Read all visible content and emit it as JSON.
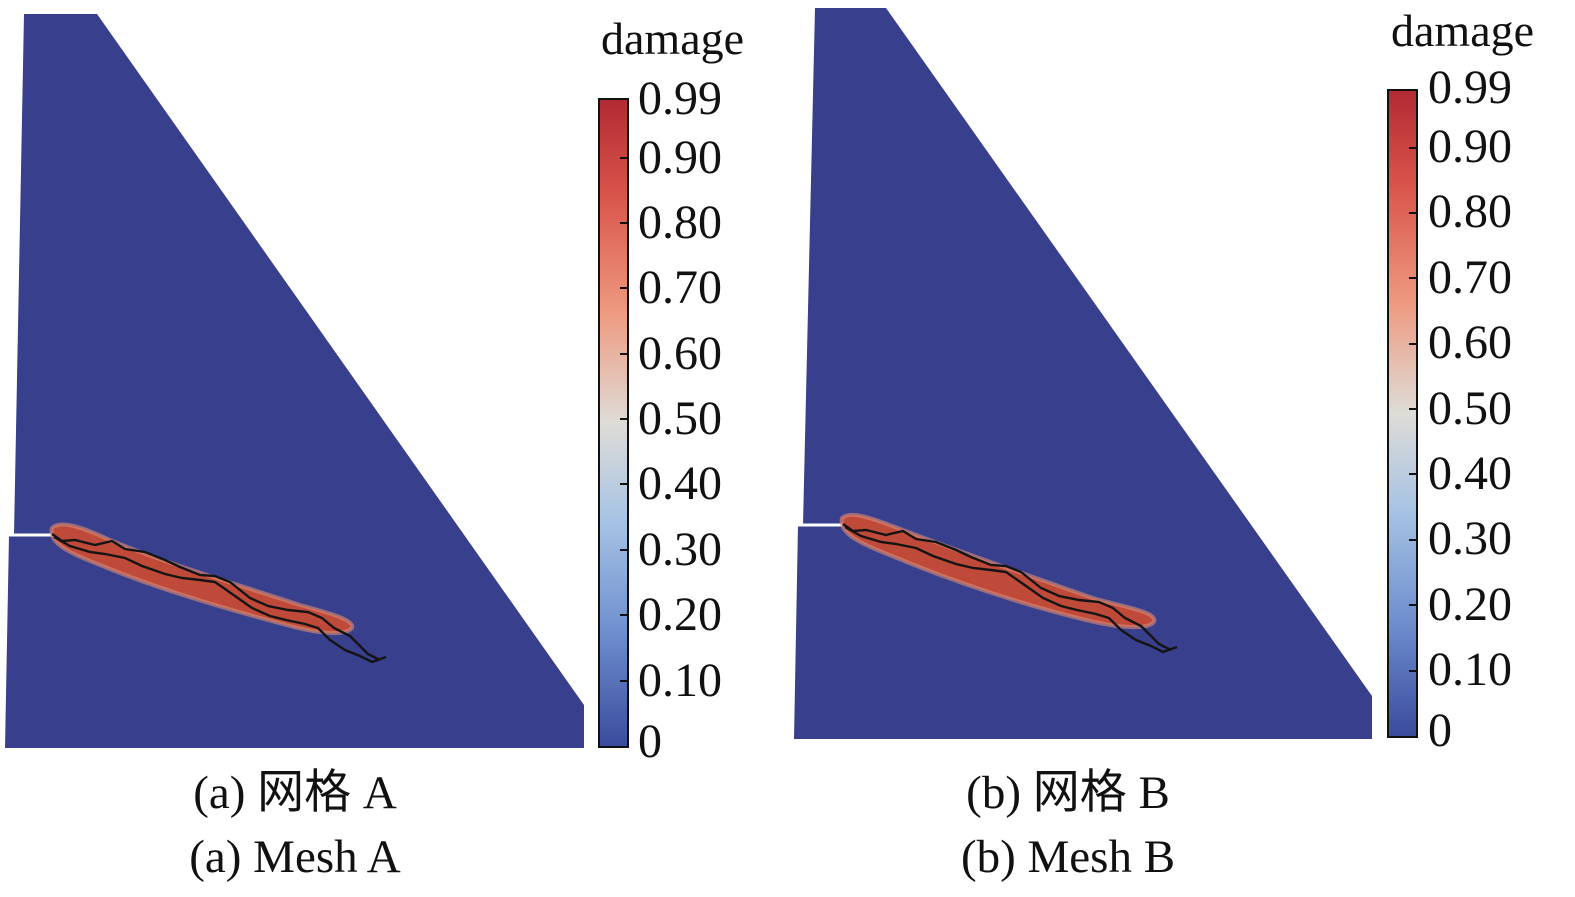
{
  "colorbar": {
    "title": "damage",
    "ticks": [
      "0.99",
      "0.90",
      "0.80",
      "0.70",
      "0.60",
      "0.50",
      "0.40",
      "0.30",
      "0.20",
      "0.10",
      "0"
    ],
    "stops": [
      "#b22a33",
      "#d9554b",
      "#ee9a80",
      "#dedcd7",
      "#a7c3e4",
      "#6f8fcf",
      "#3a4b9d"
    ]
  },
  "domain_color": "#383f8c",
  "panels": [
    {
      "caption_cn": "(a) 网格 A",
      "caption_en": "(a) Mesh A"
    },
    {
      "caption_cn": "(b) 网格 B",
      "caption_en": "(b) Mesh B"
    }
  ]
}
